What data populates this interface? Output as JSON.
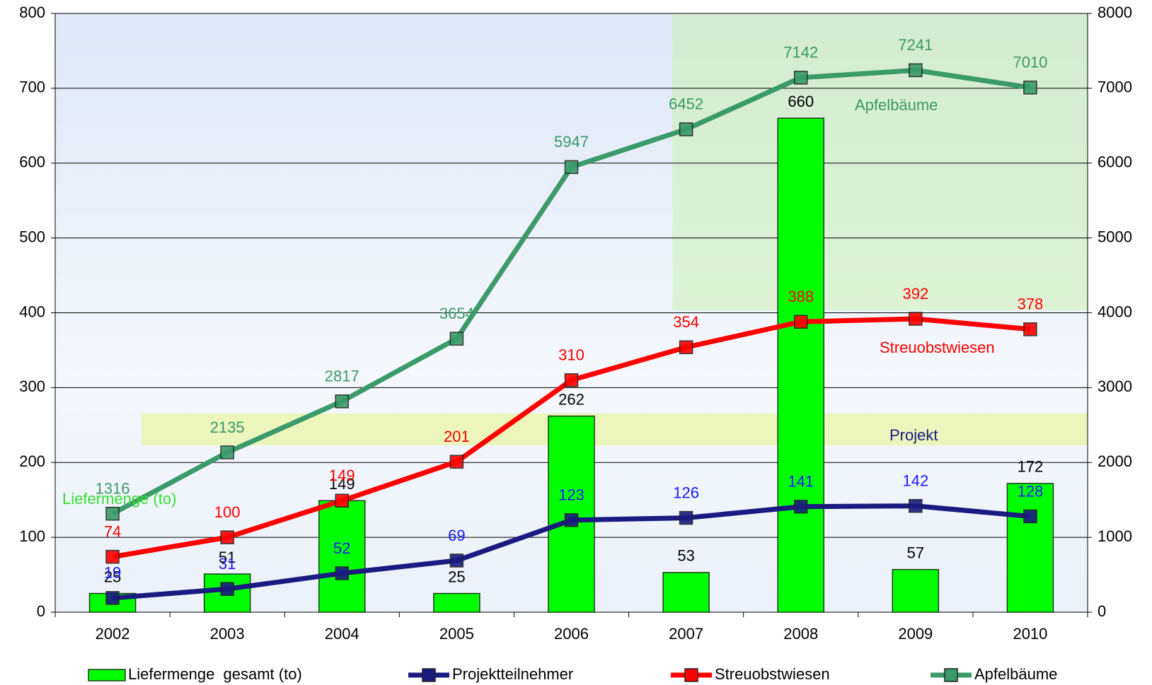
{
  "chart_data": {
    "type": "bar-line",
    "categories": [
      "2002",
      "2003",
      "2004",
      "2005",
      "2006",
      "2007",
      "2008",
      "2009",
      "2010"
    ],
    "series": [
      {
        "name": "Liefermenge  gesamt (to)",
        "type": "bar",
        "color": "#00ff00",
        "values": [
          25,
          51,
          149,
          25,
          262,
          53,
          660,
          57,
          172
        ]
      },
      {
        "name": "Projektteilnehmer",
        "type": "line",
        "color": "#1a1a80",
        "values": [
          19,
          31,
          52,
          69,
          123,
          126,
          141,
          142,
          128
        ]
      },
      {
        "name": "Streuobstwiesen",
        "type": "line",
        "color": "#ff0000",
        "values": [
          74,
          100,
          149,
          201,
          310,
          354,
          388,
          392,
          378
        ]
      },
      {
        "name": "Apfelbäume",
        "type": "line",
        "color": "#3a9a6a",
        "axis": "y2",
        "values": [
          1316,
          2135,
          2817,
          3654,
          5947,
          6452,
          7142,
          7241,
          7010
        ]
      }
    ],
    "annotations": [
      "Liefermenge (to)",
      "Apfelbäume",
      "Streuobstwiesen",
      "Projekt"
    ],
    "ylim": [
      0,
      800
    ],
    "yticks": [
      0,
      100,
      200,
      300,
      400,
      500,
      600,
      700,
      800
    ],
    "y2lim": [
      0,
      8000
    ],
    "y2ticks": [
      0,
      1000,
      2000,
      3000,
      4000,
      5000,
      6000,
      7000,
      8000
    ],
    "grid": true,
    "legend": "bottom"
  }
}
